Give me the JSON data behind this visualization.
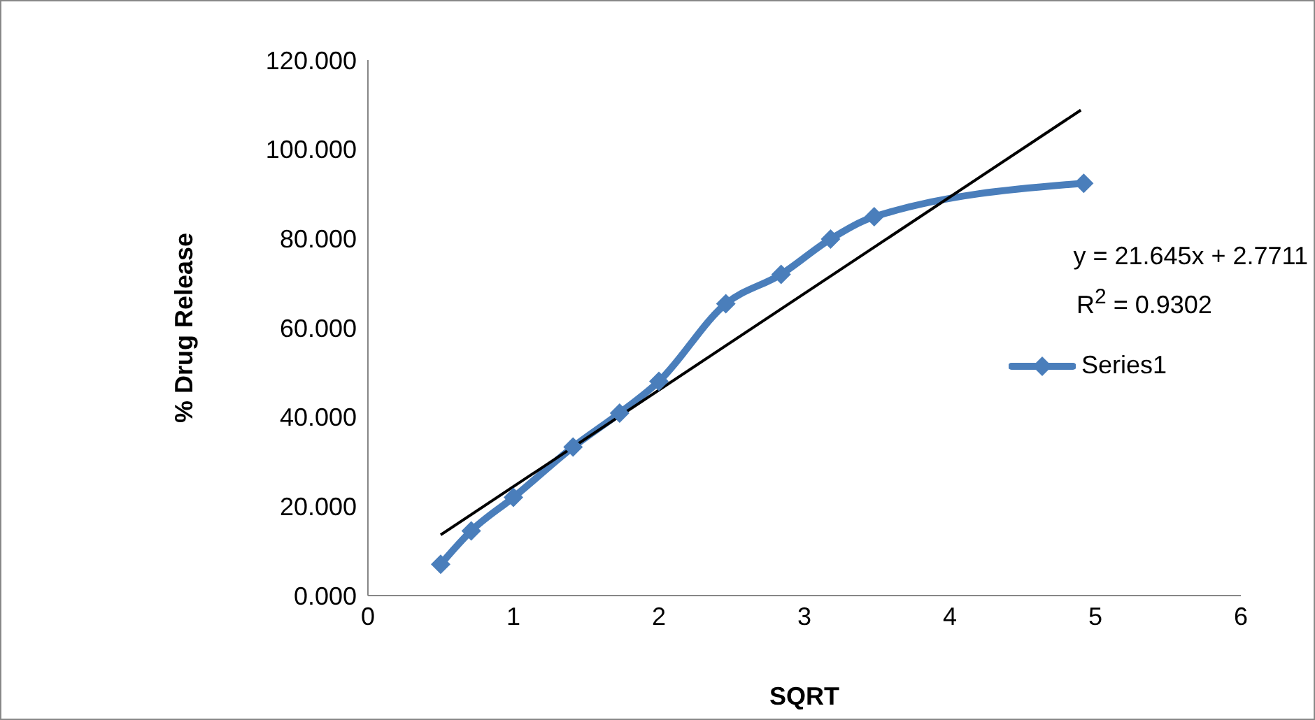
{
  "chart_data": {
    "type": "line",
    "xlabel": "SQRT",
    "ylabel": "%  Drug Release",
    "xlim": [
      0,
      6
    ],
    "xticks": [
      0,
      1,
      2,
      3,
      4,
      5,
      6
    ],
    "ylim": [
      0,
      120
    ],
    "yticks": [
      {
        "value": 0,
        "label": "0.000"
      },
      {
        "value": 20,
        "label": "20.000"
      },
      {
        "value": 40,
        "label": "40.000"
      },
      {
        "value": 60,
        "label": "60.000"
      },
      {
        "value": 80,
        "label": "80.000"
      },
      {
        "value": 100,
        "label": "100.000"
      },
      {
        "value": 120,
        "label": "120.000"
      }
    ],
    "series": [
      {
        "name": "Series1",
        "color": "#4a7ebb",
        "marker": "diamond",
        "x": [
          0.5,
          0.71,
          1.0,
          1.41,
          1.73,
          2.0,
          2.46,
          2.84,
          3.18,
          3.48,
          4.92
        ],
        "values": [
          7,
          14.5,
          22,
          33.3,
          40.9,
          48,
          65.4,
          72,
          79.9,
          84.9,
          92.4
        ]
      },
      {
        "type": "line",
        "color": "#000000",
        "marker": "none",
        "x": [
          0.5,
          4.9
        ],
        "values": [
          13.6,
          108.8
        ]
      }
    ],
    "annotations": [
      "y = 21.645x + 2.7711",
      "R$^{2}$ = 0.9302"
    ],
    "legend": "right",
    "line_style": "solid"
  }
}
